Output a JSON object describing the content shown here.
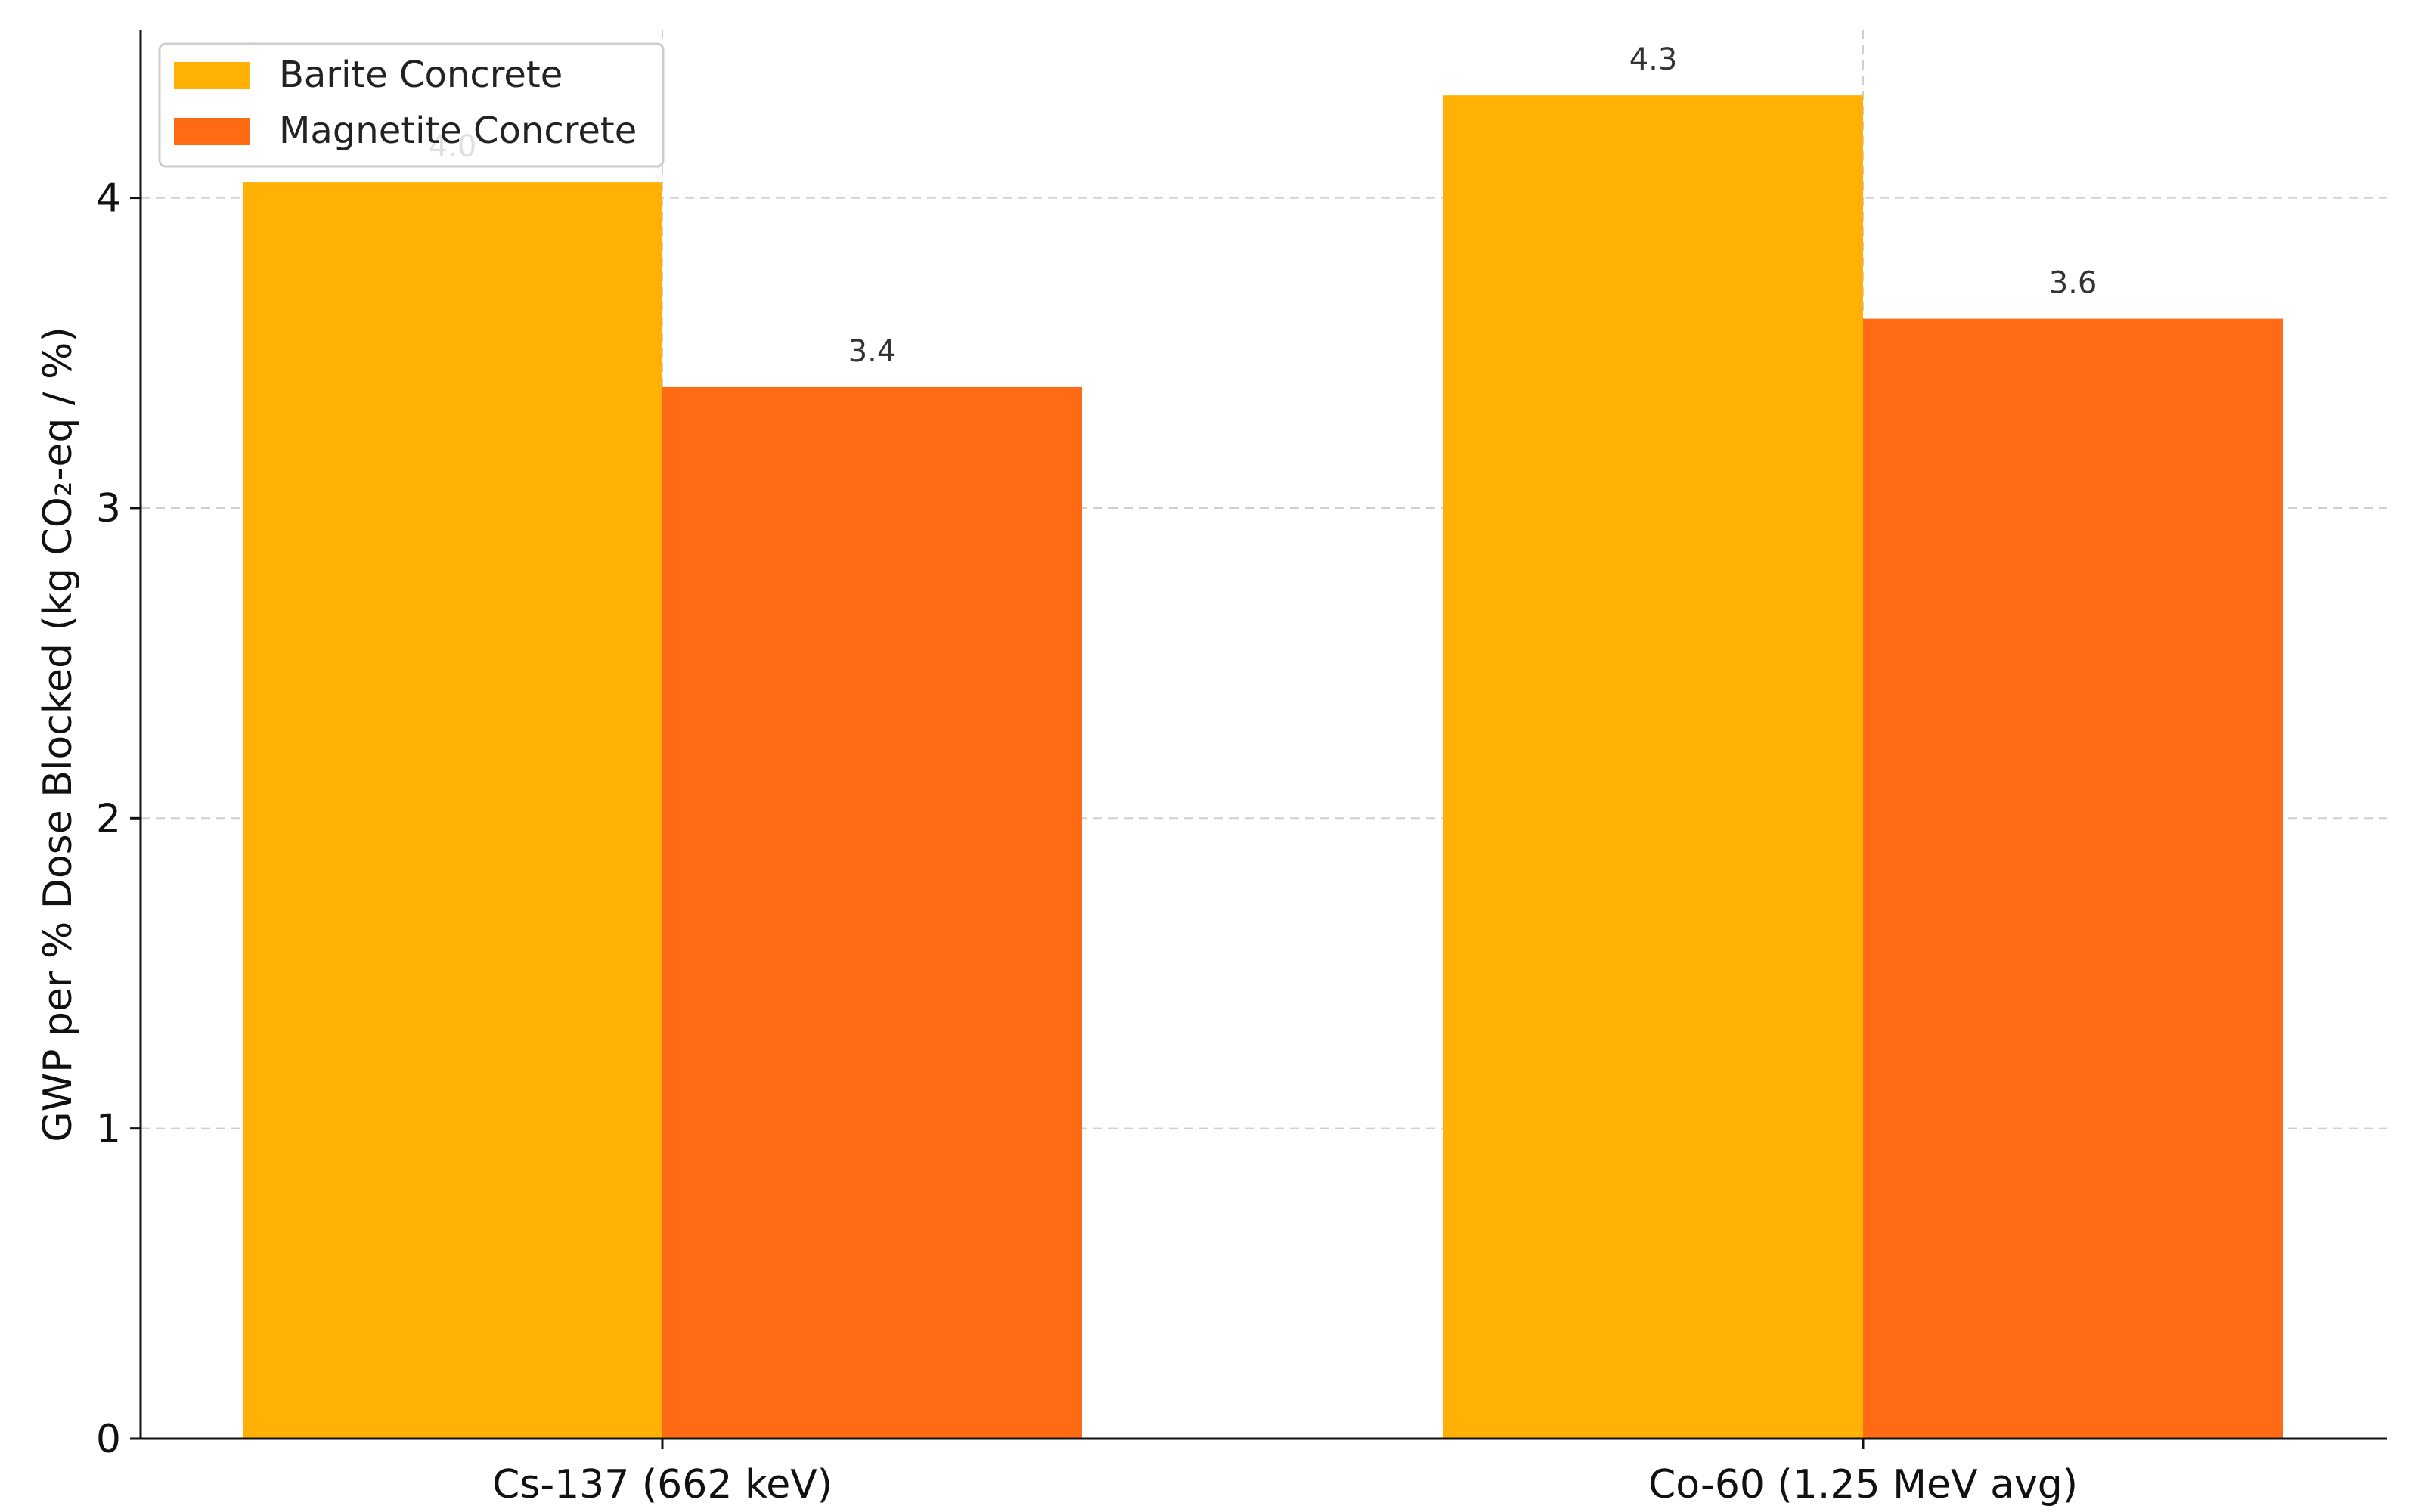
{
  "chart_data": {
    "type": "bar",
    "categories": [
      "Cs-137 (662 keV)",
      "Co-60 (1.25 MeV avg)"
    ],
    "series": [
      {
        "name": "Barite Concrete",
        "values": [
          4.05,
          4.33
        ],
        "labels": [
          "4.0",
          "4.3"
        ],
        "color": "#FFB105"
      },
      {
        "name": "Magnetite Concrete",
        "values": [
          3.39,
          3.61
        ],
        "labels": [
          "3.4",
          "3.6"
        ],
        "color": "#FF6A14"
      }
    ],
    "title": "",
    "xlabel": "",
    "ylabel": "GWP per % Dose Blocked (kg CO₂-eq / %)",
    "ylim": [
      0,
      4.54
    ],
    "yticks": [
      0,
      1,
      2,
      3,
      4
    ],
    "grid": true,
    "legend_position": "top-left"
  }
}
